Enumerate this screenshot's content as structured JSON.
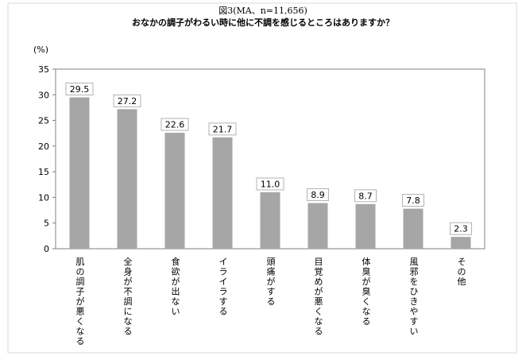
{
  "chart_data": {
    "type": "bar",
    "title": "図3(MA、n=11,656)",
    "subtitle": "おなかの調子がわるい時に他に不調を感じるところはありますか？",
    "ylabel": "(%)",
    "xlabel": "",
    "ylim": [
      0,
      35
    ],
    "yticks": [
      0,
      5,
      10,
      15,
      20,
      25,
      30,
      35
    ],
    "grid": false,
    "categories": [
      "肌の調子が悪くなる",
      "全身が不調になる",
      "食欲が出ない",
      "イライラする",
      "頭痛がする",
      "目覚めが悪くなる",
      "体臭が臭くなる",
      "風邪をひきやすい",
      "その他"
    ],
    "values": [
      29.5,
      27.2,
      22.6,
      21.7,
      11.0,
      8.9,
      8.7,
      7.8,
      2.3
    ],
    "value_labels": [
      "29.5",
      "27.2",
      "22.6",
      "21.7",
      "11.0",
      "8.9",
      "8.7",
      "7.8",
      "2.3"
    ],
    "bar_color": "#a6a6a6",
    "frame_color": "#808080"
  }
}
